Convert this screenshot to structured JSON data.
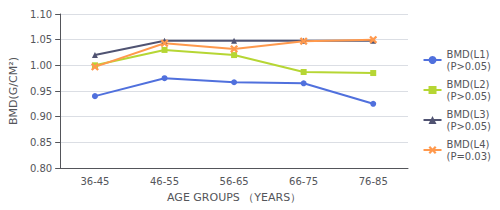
{
  "chart_data": {
    "type": "line",
    "xlabel": "AGE GROUPS （YEARS）",
    "ylabel": "BMD(G/CM²)",
    "categories": [
      "36-45",
      "46-55",
      "56-65",
      "66-75",
      "76-85"
    ],
    "series": [
      {
        "name": "BMD(L1)\n(P>0.05)",
        "marker": "circle",
        "values": [
          0.94,
          0.975,
          0.967,
          0.965,
          0.925
        ]
      },
      {
        "name": "BMD(L2)\n(P>0.05)",
        "marker": "square",
        "values": [
          1.0,
          1.03,
          1.02,
          0.987,
          0.985
        ]
      },
      {
        "name": "BMD(L3)\n(P>0.05)",
        "marker": "triangle",
        "values": [
          1.02,
          1.048,
          1.048,
          1.048,
          1.048
        ]
      },
      {
        "name": "BMD(L4)\n(P=0.03)",
        "marker": "x",
        "values": [
          0.997,
          1.043,
          1.032,
          1.047,
          1.05
        ]
      }
    ],
    "ylim": [
      0.8,
      1.1
    ],
    "yticks": [
      {
        "value": 0.8,
        "label": "0.80"
      },
      {
        "value": 0.85,
        "label": "0.85"
      },
      {
        "value": 0.9,
        "label": "0.90"
      },
      {
        "value": 0.95,
        "label": "0.95"
      },
      {
        "value": 1.0,
        "label": "1.00"
      },
      {
        "value": 1.05,
        "label": "1.05"
      },
      {
        "value": 1.1,
        "label": "1.10"
      }
    ],
    "grid": true,
    "legend": "right"
  }
}
